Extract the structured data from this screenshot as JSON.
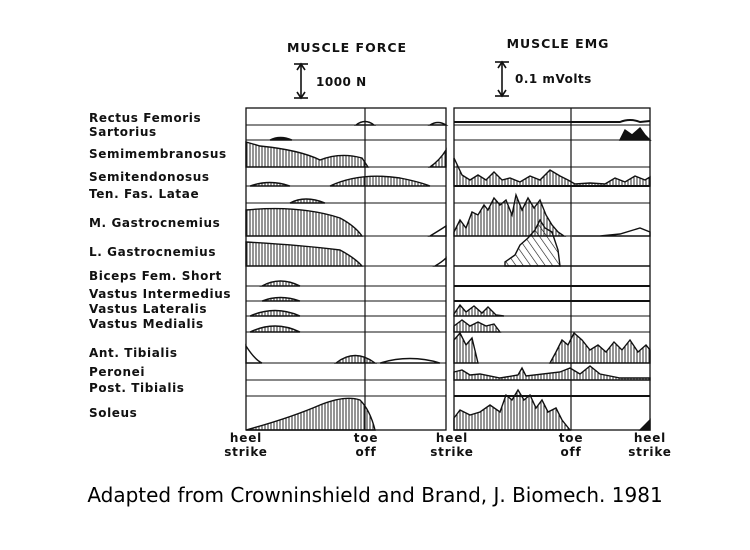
{
  "headers": {
    "force": "MUSCLE FORCE",
    "emg": "MUSCLE EMG"
  },
  "scale_bars": {
    "force": "1000 N",
    "emg": "0.1 mVolts"
  },
  "muscles": [
    "Rectus Femoris",
    "Sartorius",
    "Semimembranosus",
    "Semitendonosus",
    "Ten. Fas. Latae",
    "M. Gastrocnemius",
    "L. Gastrocnemius",
    "Biceps Fem. Short",
    "Vastus Intermedius",
    "Vastus Lateralis",
    "Vastus Medialis",
    "Ant. Tibialis",
    "Peronei",
    "Post. Tibialis",
    "Soleus"
  ],
  "gait_events": [
    [
      "heel",
      "strike"
    ],
    [
      "toe",
      "off"
    ],
    [
      "heel",
      "strike"
    ],
    [
      "toe",
      "off"
    ],
    [
      "heel",
      "strike"
    ]
  ],
  "caption": "Adapted from Crowninshield and Brand, J. Biomech. 1981"
}
